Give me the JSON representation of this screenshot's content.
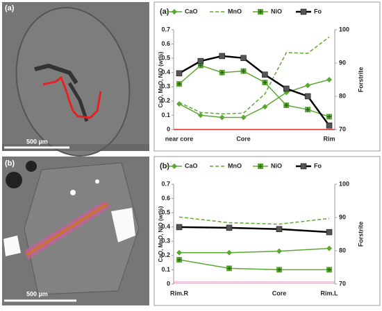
{
  "images": [
    {
      "label": "(a)",
      "scale": "500 µm"
    },
    {
      "label": "(b)",
      "scale": "500 µm"
    }
  ],
  "chart_data": [
    {
      "type": "line",
      "title": "(a)",
      "categories": [
        "near core",
        null,
        null,
        "Core",
        null,
        null,
        null,
        "Rim"
      ],
      "ylabel": "CaO, MnO, NiO (wt%)",
      "y2label": "Forstrite",
      "ylim": [
        0,
        0.7
      ],
      "yticks": [
        0,
        0.1,
        0.2,
        0.3,
        0.4,
        0.5,
        0.6,
        0.7
      ],
      "y2lim": [
        70,
        100
      ],
      "y2ticks": [
        70,
        80,
        90,
        100
      ],
      "series": [
        {
          "name": "CaO",
          "color": "#5aa832",
          "marker": "diamond",
          "dashed": false,
          "values": [
            0.18,
            0.1,
            0.085,
            0.085,
            0.16,
            0.26,
            0.31,
            0.35
          ]
        },
        {
          "name": "MnO",
          "color": "#5aa832",
          "marker": "none",
          "dashed": true,
          "values": [
            0.19,
            0.12,
            0.11,
            0.115,
            0.25,
            0.54,
            0.535,
            0.65
          ]
        },
        {
          "name": "NiO",
          "color": "#5aa832",
          "marker": "square-plus",
          "dashed": false,
          "values": [
            0.32,
            0.45,
            0.4,
            0.41,
            0.33,
            0.17,
            0.14,
            0.09
          ]
        },
        {
          "name": "Fo",
          "color": "#000000",
          "marker": "square",
          "dashed": false,
          "axis": "y2",
          "values": [
            86.9,
            90.6,
            92.1,
            91.5,
            86.5,
            82.3,
            80.0,
            71.2
          ]
        }
      ]
    },
    {
      "type": "line",
      "title": "(b)",
      "categories": [
        "Rim.R",
        null,
        "Core",
        "Rim.L"
      ],
      "ylabel": "CaO, MnO, NiO (wt%)",
      "y2label": "Forstrite",
      "ylim": [
        0,
        0.7
      ],
      "yticks": [
        0,
        0.1,
        0.2,
        0.3,
        0.4,
        0.5,
        0.6,
        0.7
      ],
      "y2lim": [
        70,
        100
      ],
      "y2ticks": [
        70,
        80,
        90,
        100
      ],
      "series": [
        {
          "name": "CaO",
          "color": "#5aa832",
          "marker": "diamond",
          "dashed": false,
          "values": [
            0.22,
            0.22,
            0.23,
            0.25
          ]
        },
        {
          "name": "MnO",
          "color": "#5aa832",
          "marker": "none",
          "dashed": true,
          "values": [
            0.47,
            0.43,
            0.42,
            0.46
          ]
        },
        {
          "name": "NiO",
          "color": "#5aa832",
          "marker": "square-plus",
          "dashed": false,
          "values": [
            0.17,
            0.11,
            0.1,
            0.1
          ]
        },
        {
          "name": "Fo",
          "color": "#000000",
          "marker": "square",
          "dashed": false,
          "axis": "y2",
          "values": [
            87.1,
            86.9,
            86.5,
            85.6
          ]
        }
      ]
    }
  ]
}
